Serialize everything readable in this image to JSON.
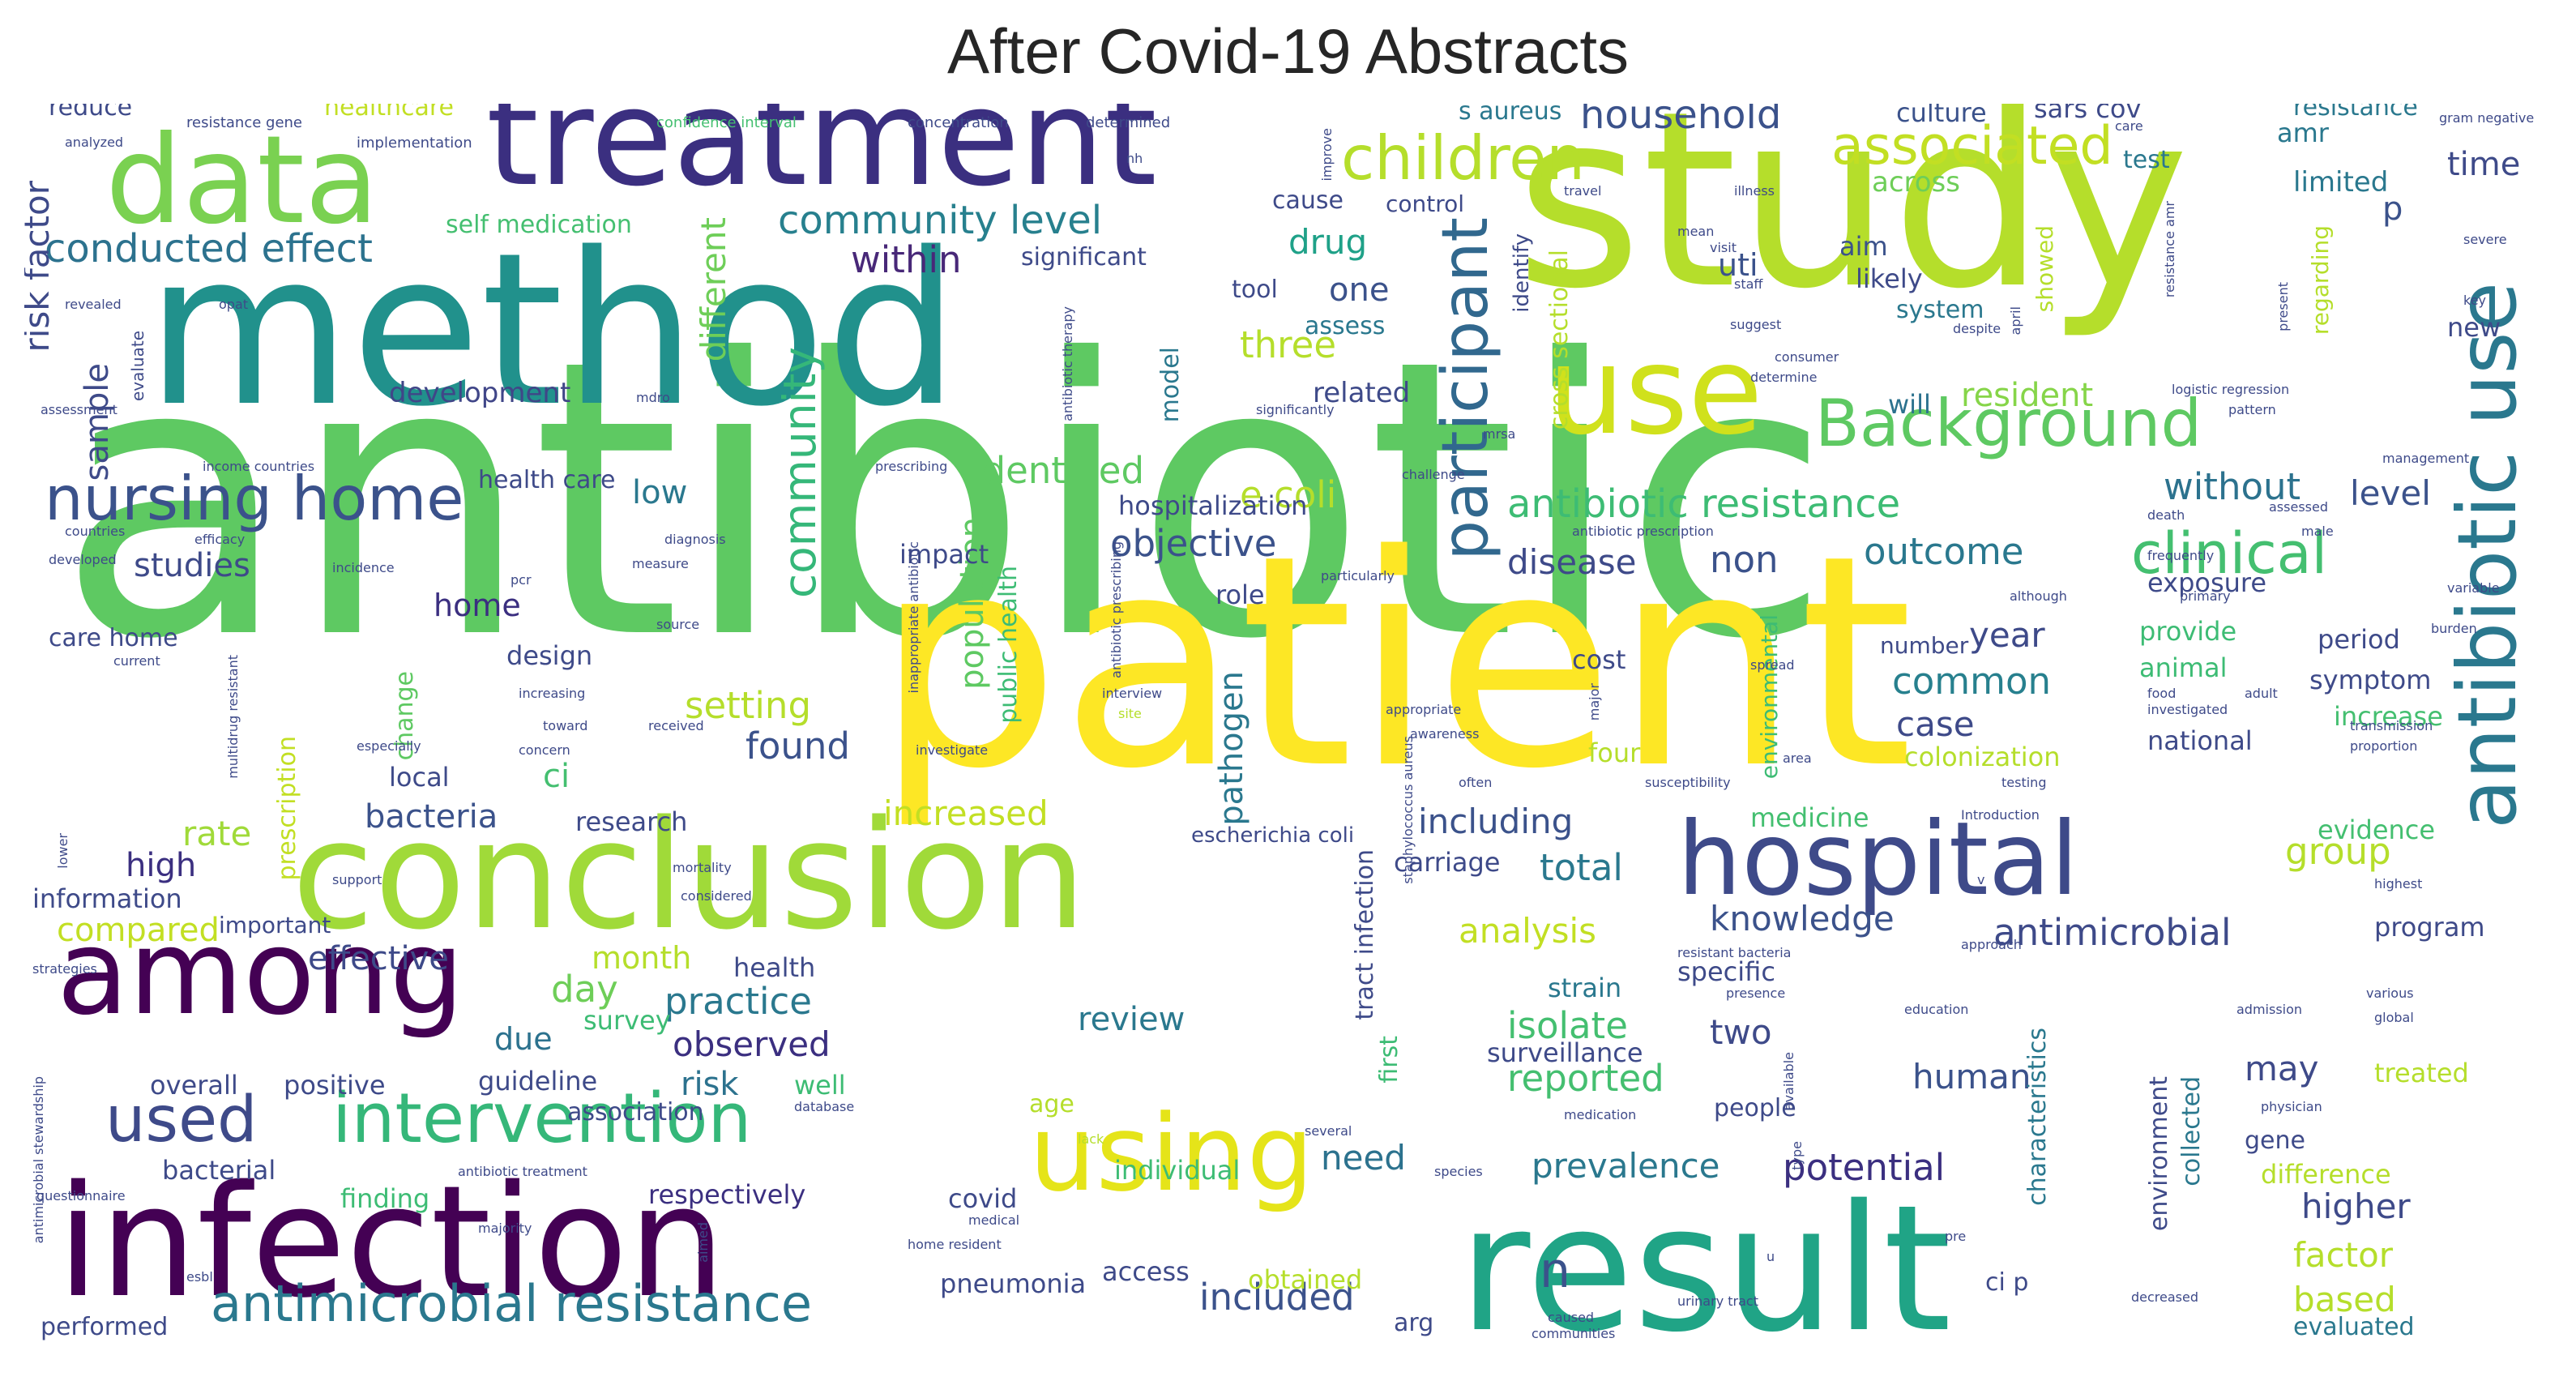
{
  "title": "After Covid-19 Abstracts",
  "palette": "viridis",
  "words": [
    {
      "text": "antibiotic",
      "color": "#5ec962"
    },
    {
      "text": "patient",
      "color": "#fde725"
    },
    {
      "text": "study",
      "color": "#b5de2b"
    },
    {
      "text": "method",
      "color": "#21918c"
    },
    {
      "text": "result",
      "color": "#20a486"
    },
    {
      "text": "infection",
      "color": "#440154"
    },
    {
      "text": "conclusion",
      "color": "#a0da39"
    },
    {
      "text": "treatment",
      "color": "#3b2f80"
    },
    {
      "text": "data",
      "color": "#7ad151"
    },
    {
      "text": "hospital",
      "color": "#3e4a89"
    },
    {
      "text": "among",
      "color": "#440154"
    },
    {
      "text": "use",
      "color": "#d0e11c"
    },
    {
      "text": "antibiotic use",
      "color": "#2a788e"
    },
    {
      "text": "using",
      "color": "#e5e419"
    },
    {
      "text": "intervention",
      "color": "#35b779"
    },
    {
      "text": "participant",
      "color": "#31688e"
    },
    {
      "text": "Background",
      "color": "#5ec962"
    },
    {
      "text": "nursing home",
      "color": "#3b528b"
    },
    {
      "text": "children",
      "color": "#b5de2b"
    },
    {
      "text": "used",
      "color": "#3e4a89"
    },
    {
      "text": "antimicrobial resistance",
      "color": "#2a788e"
    },
    {
      "text": "associated",
      "color": "#c2df23"
    },
    {
      "text": "community",
      "color": "#35b779"
    },
    {
      "text": "clinical",
      "color": "#44bf70"
    },
    {
      "text": "antibiotic resistance",
      "color": "#3dbc74"
    },
    {
      "text": "household",
      "color": "#3b528b"
    },
    {
      "text": "conducted effect",
      "color": "#2c728e"
    },
    {
      "text": "community level",
      "color": "#27808e"
    },
    {
      "text": "risk factor",
      "color": "#3e4a89"
    },
    {
      "text": "within",
      "color": "#482878"
    },
    {
      "text": "drug",
      "color": "#1fa188"
    },
    {
      "text": "one",
      "color": "#3b528b"
    },
    {
      "text": "three",
      "color": "#b5de2b"
    },
    {
      "text": "different",
      "color": "#6ece58"
    },
    {
      "text": "sample",
      "color": "#3e4a89"
    },
    {
      "text": "development",
      "color": "#404688"
    },
    {
      "text": "e coli",
      "color": "#b5de2b"
    },
    {
      "text": "identified",
      "color": "#5ec962"
    },
    {
      "text": "low",
      "color": "#2a788e"
    },
    {
      "text": "objective",
      "color": "#3b528b"
    },
    {
      "text": "studies",
      "color": "#3e4a89"
    },
    {
      "text": "home",
      "color": "#3b2f80"
    },
    {
      "text": "resident",
      "color": "#86d549"
    },
    {
      "text": "without",
      "color": "#2c728e"
    },
    {
      "text": "level",
      "color": "#3b528b"
    },
    {
      "text": "outcome",
      "color": "#2a788e"
    },
    {
      "text": "disease",
      "color": "#3e4a89"
    },
    {
      "text": "non",
      "color": "#3b528b"
    },
    {
      "text": "population",
      "color": "#5ec962"
    },
    {
      "text": "public health",
      "color": "#3dbc74"
    },
    {
      "text": "pathogen",
      "color": "#2a788e"
    },
    {
      "text": "year",
      "color": "#3e4a89"
    },
    {
      "text": "common",
      "color": "#27808e"
    },
    {
      "text": "case",
      "color": "#3e4a89"
    },
    {
      "text": "setting",
      "color": "#b5de2b"
    },
    {
      "text": "found",
      "color": "#3b528b"
    },
    {
      "text": "ci",
      "color": "#44bf70"
    },
    {
      "text": "rate",
      "color": "#a0da39"
    },
    {
      "text": "bacteria",
      "color": "#3b528b"
    },
    {
      "text": "high",
      "color": "#3b2f80"
    },
    {
      "text": "increased",
      "color": "#c2df23"
    },
    {
      "text": "including",
      "color": "#3b528b"
    },
    {
      "text": "total",
      "color": "#2a788e"
    },
    {
      "text": "group",
      "color": "#b5de2b"
    },
    {
      "text": "compared",
      "color": "#c2df23"
    },
    {
      "text": "effective",
      "color": "#3e4a89"
    },
    {
      "text": "day",
      "color": "#6ece58"
    },
    {
      "text": "practice",
      "color": "#2a788e"
    },
    {
      "text": "month",
      "color": "#b5de2b"
    },
    {
      "text": "due",
      "color": "#2c728e"
    },
    {
      "text": "review",
      "color": "#2a788e"
    },
    {
      "text": "observed",
      "color": "#3b2f80"
    },
    {
      "text": "risk",
      "color": "#2c728e"
    },
    {
      "text": "knowledge",
      "color": "#3b528b"
    },
    {
      "text": "antimicrobial",
      "color": "#3e4a89"
    },
    {
      "text": "analysis",
      "color": "#c2df23"
    },
    {
      "text": "isolate",
      "color": "#44bf70"
    },
    {
      "text": "two",
      "color": "#3e4a89"
    },
    {
      "text": "reported",
      "color": "#44bf70"
    },
    {
      "text": "human",
      "color": "#3b528b"
    },
    {
      "text": "may",
      "color": "#3e4a89"
    },
    {
      "text": "prevalence",
      "color": "#2a788e"
    },
    {
      "text": "potential",
      "color": "#3b2f80"
    },
    {
      "text": "need",
      "color": "#2c728e"
    },
    {
      "text": "higher",
      "color": "#3e4a89"
    },
    {
      "text": "factor",
      "color": "#b5de2b"
    },
    {
      "text": "based",
      "color": "#b5de2b"
    },
    {
      "text": "included",
      "color": "#3b528b"
    },
    {
      "text": "n",
      "color": "#3b528b"
    },
    {
      "text": "time",
      "color": "#3e4a89"
    },
    {
      "text": "limited",
      "color": "#2a788e"
    },
    {
      "text": "p",
      "color": "#3b528b"
    },
    {
      "text": "amr",
      "color": "#2a788e"
    },
    {
      "text": "culture",
      "color": "#3b528b"
    },
    {
      "text": "sars cov",
      "color": "#3e4a89"
    },
    {
      "text": "resistance",
      "color": "#2a788e"
    },
    {
      "text": "test",
      "color": "#2a788e"
    },
    {
      "text": "across",
      "color": "#6ece58"
    },
    {
      "text": "aim",
      "color": "#3b528b"
    },
    {
      "text": "likely",
      "color": "#3e4a89"
    },
    {
      "text": "system",
      "color": "#2a788e"
    },
    {
      "text": "uti",
      "color": "#3b528b"
    },
    {
      "text": "related",
      "color": "#3e4a89"
    },
    {
      "text": "will",
      "color": "#2c728e"
    },
    {
      "text": "cause",
      "color": "#3e4a89"
    },
    {
      "text": "control",
      "color": "#3e4a89"
    },
    {
      "text": "tool",
      "color": "#3e4a89"
    },
    {
      "text": "assess",
      "color": "#2a788e"
    },
    {
      "text": "significant",
      "color": "#3e4a89"
    },
    {
      "text": "self medication",
      "color": "#44bf70"
    },
    {
      "text": "s aureus",
      "color": "#2a788e"
    },
    {
      "text": "healthcare",
      "color": "#c2df23"
    },
    {
      "text": "reduce",
      "color": "#3e4a89"
    },
    {
      "text": "health care",
      "color": "#3e4a89"
    },
    {
      "text": "care home",
      "color": "#3e4a89"
    },
    {
      "text": "local",
      "color": "#3e4a89"
    },
    {
      "text": "design",
      "color": "#3e4a89"
    },
    {
      "text": "change",
      "color": "#5ec962"
    },
    {
      "text": "research",
      "color": "#3e4a89"
    },
    {
      "text": "information",
      "color": "#3e4a89"
    },
    {
      "text": "important",
      "color": "#3e4a89"
    },
    {
      "text": "prescription",
      "color": "#c2df23"
    },
    {
      "text": "health",
      "color": "#3e4a89"
    },
    {
      "text": "survey",
      "color": "#3dbc74"
    },
    {
      "text": "guideline",
      "color": "#3e4a89"
    },
    {
      "text": "association",
      "color": "#3e4a89"
    },
    {
      "text": "well",
      "color": "#3dbc74"
    },
    {
      "text": "positive",
      "color": "#3e4a89"
    },
    {
      "text": "overall",
      "color": "#3e4a89"
    },
    {
      "text": "bacterial",
      "color": "#3e4a89"
    },
    {
      "text": "finding",
      "color": "#3dbc74"
    },
    {
      "text": "respectively",
      "color": "#3b2f80"
    },
    {
      "text": "covid",
      "color": "#3e4a89"
    },
    {
      "text": "pneumonia",
      "color": "#3e4a89"
    },
    {
      "text": "access",
      "color": "#3e4a89"
    },
    {
      "text": "obtained",
      "color": "#b5de2b"
    },
    {
      "text": "individual",
      "color": "#3dbc74"
    },
    {
      "text": "performed",
      "color": "#3e4a89"
    },
    {
      "text": "arg",
      "color": "#3e4a89"
    },
    {
      "text": "ci p",
      "color": "#3e4a89"
    },
    {
      "text": "evaluated",
      "color": "#2a788e"
    },
    {
      "text": "difference",
      "color": "#b5de2b"
    },
    {
      "text": "gene",
      "color": "#3e4a89"
    },
    {
      "text": "treated",
      "color": "#b5de2b"
    },
    {
      "text": "people",
      "color": "#3e4a89"
    },
    {
      "text": "surveillance",
      "color": "#3e4a89"
    },
    {
      "text": "strain",
      "color": "#2a788e"
    },
    {
      "text": "specific",
      "color": "#3e4a89"
    },
    {
      "text": "medicine",
      "color": "#44bf70"
    },
    {
      "text": "carriage",
      "color": "#3e4a89"
    },
    {
      "text": "impact",
      "color": "#3e4a89"
    },
    {
      "text": "hospitalization",
      "color": "#3e4a89"
    },
    {
      "text": "exposure",
      "color": "#3e4a89"
    },
    {
      "text": "provide",
      "color": "#3dbc74"
    },
    {
      "text": "animal",
      "color": "#3dbc74"
    },
    {
      "text": "period",
      "color": "#3e4a89"
    },
    {
      "text": "symptom",
      "color": "#3e4a89"
    },
    {
      "text": "increase",
      "color": "#44bf70"
    },
    {
      "text": "national",
      "color": "#3e4a89"
    },
    {
      "text": "colonization",
      "color": "#b5de2b"
    },
    {
      "text": "evidence",
      "color": "#44bf70"
    },
    {
      "text": "program",
      "color": "#3e4a89"
    },
    {
      "text": "new",
      "color": "#3e4a89"
    },
    {
      "text": "cost",
      "color": "#3e4a89"
    },
    {
      "text": "four",
      "color": "#b5de2b"
    },
    {
      "text": "role",
      "color": "#3e4a89"
    },
    {
      "text": "number",
      "color": "#3e4a89"
    },
    {
      "text": "escherichia coli",
      "color": "#3e4a89"
    },
    {
      "text": "first",
      "color": "#3dbc74"
    },
    {
      "text": "tract infection",
      "color": "#3e4a89"
    },
    {
      "text": "cross sectional",
      "color": "#b5de2b"
    },
    {
      "text": "identify",
      "color": "#3e4a89"
    },
    {
      "text": "environmental",
      "color": "#3dbc74"
    },
    {
      "text": "characteristics",
      "color": "#2a788e"
    },
    {
      "text": "environment",
      "color": "#3e4a89"
    },
    {
      "text": "collected",
      "color": "#2a788e"
    },
    {
      "text": "showed",
      "color": "#b5de2b"
    },
    {
      "text": "regarding",
      "color": "#b5de2b"
    },
    {
      "text": "model",
      "color": "#2a788e"
    },
    {
      "text": "age",
      "color": "#b5de2b"
    },
    {
      "text": "resistance gene",
      "color": "#3e4a89"
    },
    {
      "text": "confidence interval",
      "color": "#44bf70"
    },
    {
      "text": "concentration",
      "color": "#3e4a89"
    },
    {
      "text": "determined",
      "color": "#3e4a89"
    },
    {
      "text": "implementation",
      "color": "#3e4a89"
    },
    {
      "text": "analyzed",
      "color": "#3e4a89"
    },
    {
      "text": "assessment",
      "color": "#3e4a89"
    },
    {
      "text": "income countries",
      "color": "#3e4a89"
    },
    {
      "text": "countries",
      "color": "#3e4a89"
    },
    {
      "text": "developed",
      "color": "#3e4a89"
    },
    {
      "text": "efficacy",
      "color": "#3e4a89"
    },
    {
      "text": "incidence",
      "color": "#3e4a89"
    },
    {
      "text": "revealed",
      "color": "#3e4a89"
    },
    {
      "text": "evaluate",
      "color": "#3e4a89"
    },
    {
      "text": "prescribing",
      "color": "#3e4a89"
    },
    {
      "text": "diagnosis",
      "color": "#3e4a89"
    },
    {
      "text": "measure",
      "color": "#3e4a89"
    },
    {
      "text": "pcr",
      "color": "#3e4a89"
    },
    {
      "text": "source",
      "color": "#3e4a89"
    },
    {
      "text": "current",
      "color": "#3e4a89"
    },
    {
      "text": "multidrug resistant",
      "color": "#3e4a89"
    },
    {
      "text": "especially",
      "color": "#3e4a89"
    },
    {
      "text": "concern",
      "color": "#3e4a89"
    },
    {
      "text": "increasing",
      "color": "#3e4a89"
    },
    {
      "text": "toward",
      "color": "#3e4a89"
    },
    {
      "text": "received",
      "color": "#3e4a89"
    },
    {
      "text": "investigate",
      "color": "#3e4a89"
    },
    {
      "text": "support",
      "color": "#3e4a89"
    },
    {
      "text": "considered",
      "color": "#3e4a89"
    },
    {
      "text": "mortality",
      "color": "#3e4a89"
    },
    {
      "text": "strategies",
      "color": "#3e4a89"
    },
    {
      "text": "lower",
      "color": "#3e4a89"
    },
    {
      "text": "questionnaire",
      "color": "#3e4a89"
    },
    {
      "text": "antimicrobial stewardship",
      "color": "#3e4a89"
    },
    {
      "text": "majority",
      "color": "#3e4a89"
    },
    {
      "text": "aimed",
      "color": "#3e4a89"
    },
    {
      "text": "home resident",
      "color": "#3e4a89"
    },
    {
      "text": "database",
      "color": "#3e4a89"
    },
    {
      "text": "antibiotic treatment",
      "color": "#3e4a89"
    },
    {
      "text": "esbl",
      "color": "#3e4a89"
    },
    {
      "text": "medical",
      "color": "#3e4a89"
    },
    {
      "text": "interview",
      "color": "#3e4a89"
    },
    {
      "text": "site",
      "color": "#b5de2b"
    },
    {
      "text": "lack",
      "color": "#b5de2b"
    },
    {
      "text": "species",
      "color": "#3e4a89"
    },
    {
      "text": "several",
      "color": "#3e4a89"
    },
    {
      "text": "medication",
      "color": "#3e4a89"
    },
    {
      "text": "urinary tract",
      "color": "#3e4a89"
    },
    {
      "text": "caused",
      "color": "#3e4a89"
    },
    {
      "text": "communities",
      "color": "#3e4a89"
    },
    {
      "text": "Introduction",
      "color": "#3e4a89"
    },
    {
      "text": "approach",
      "color": "#3e4a89"
    },
    {
      "text": "resistant bacteria",
      "color": "#3e4a89"
    },
    {
      "text": "education",
      "color": "#3e4a89"
    },
    {
      "text": "presence",
      "color": "#3e4a89"
    },
    {
      "text": "available",
      "color": "#3e4a89"
    },
    {
      "text": "admission",
      "color": "#3e4a89"
    },
    {
      "text": "various",
      "color": "#3e4a89"
    },
    {
      "text": "global",
      "color": "#3e4a89"
    },
    {
      "text": "physician",
      "color": "#3e4a89"
    },
    {
      "text": "decreased",
      "color": "#3e4a89"
    },
    {
      "text": "pre",
      "color": "#3e4a89"
    },
    {
      "text": "highest",
      "color": "#3e4a89"
    },
    {
      "text": "type",
      "color": "#3e4a89"
    },
    {
      "text": "area",
      "color": "#3e4a89"
    },
    {
      "text": "susceptibility",
      "color": "#3e4a89"
    },
    {
      "text": "spread",
      "color": "#3e4a89"
    },
    {
      "text": "major",
      "color": "#3e4a89"
    },
    {
      "text": "appropriate",
      "color": "#3e4a89"
    },
    {
      "text": "awareness",
      "color": "#3e4a89"
    },
    {
      "text": "often",
      "color": "#3e4a89"
    },
    {
      "text": "testing",
      "color": "#3e4a89"
    },
    {
      "text": "adult",
      "color": "#3e4a89"
    },
    {
      "text": "investigated",
      "color": "#3e4a89"
    },
    {
      "text": "transmission",
      "color": "#3e4a89"
    },
    {
      "text": "proportion",
      "color": "#3e4a89"
    },
    {
      "text": "although",
      "color": "#3e4a89"
    },
    {
      "text": "frequently",
      "color": "#3e4a89"
    },
    {
      "text": "primary",
      "color": "#3e4a89"
    },
    {
      "text": "variable",
      "color": "#3e4a89"
    },
    {
      "text": "burden",
      "color": "#3e4a89"
    },
    {
      "text": "death",
      "color": "#3e4a89"
    },
    {
      "text": "assessed",
      "color": "#3e4a89"
    },
    {
      "text": "male",
      "color": "#3e4a89"
    },
    {
      "text": "management",
      "color": "#3e4a89"
    },
    {
      "text": "logistic regression",
      "color": "#3e4a89"
    },
    {
      "text": "mrsa",
      "color": "#3e4a89"
    },
    {
      "text": "antibiotic prescription",
      "color": "#3e4a89"
    },
    {
      "text": "staphylococcus aureus",
      "color": "#3e4a89"
    },
    {
      "text": "particularly",
      "color": "#3e4a89"
    },
    {
      "text": "challenge",
      "color": "#3e4a89"
    },
    {
      "text": "inappropriate antibiotic",
      "color": "#3e4a89"
    },
    {
      "text": "antibiotic prescribing",
      "color": "#3e4a89"
    },
    {
      "text": "antibiotic therapy",
      "color": "#3e4a89"
    },
    {
      "text": "mdro",
      "color": "#3e4a89"
    },
    {
      "text": "opat",
      "color": "#3e4a89"
    },
    {
      "text": "significantly",
      "color": "#3e4a89"
    },
    {
      "text": "visit",
      "color": "#3e4a89"
    },
    {
      "text": "travel",
      "color": "#3e4a89"
    },
    {
      "text": "illness",
      "color": "#3e4a89"
    },
    {
      "text": "staff",
      "color": "#3e4a89"
    },
    {
      "text": "suggest",
      "color": "#3e4a89"
    },
    {
      "text": "consumer",
      "color": "#3e4a89"
    },
    {
      "text": "determine",
      "color": "#3e4a89"
    },
    {
      "text": "despite",
      "color": "#3e4a89"
    },
    {
      "text": "april",
      "color": "#3e4a89"
    },
    {
      "text": "resistance amr",
      "color": "#3e4a89"
    },
    {
      "text": "gram negative",
      "color": "#3e4a89"
    },
    {
      "text": "severe",
      "color": "#3e4a89"
    },
    {
      "text": "key",
      "color": "#3e4a89"
    },
    {
      "text": "present",
      "color": "#3e4a89"
    },
    {
      "text": "improve",
      "color": "#3e4a89"
    },
    {
      "text": "care",
      "color": "#3e4a89"
    },
    {
      "text": "mean",
      "color": "#3e4a89"
    },
    {
      "text": "nh",
      "color": "#3e4a89"
    },
    {
      "text": "pattern",
      "color": "#3e4a89"
    },
    {
      "text": "v",
      "color": "#3e4a89"
    },
    {
      "text": "u",
      "color": "#3e4a89"
    },
    {
      "text": "food",
      "color": "#3e4a89"
    }
  ]
}
